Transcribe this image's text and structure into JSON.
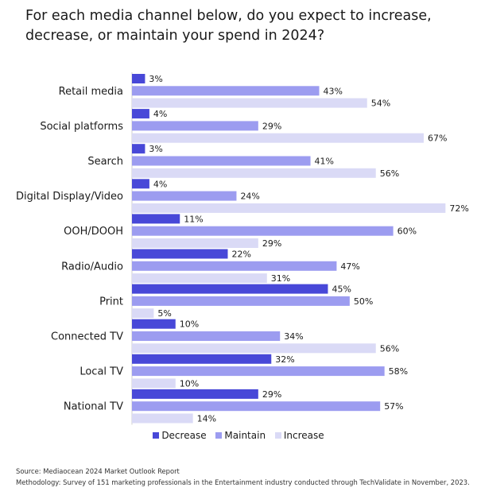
{
  "title": "For each media channel below, do you expect to increase, decrease, or maintain your spend in 2024?",
  "colors": {
    "decrease": "#4848d8",
    "maintain": "#9c9cf0",
    "increase": "#dadaf6"
  },
  "chart_data": {
    "type": "bar",
    "orientation": "horizontal",
    "title": "For each media channel below, do you expect to increase, decrease, or maintain your spend in 2024?",
    "categories": [
      "Retail media",
      "Social platforms",
      "Search",
      "Digital Display/Video",
      "OOH/DOOH",
      "Radio/Audio",
      "Print",
      "Connected TV",
      "Local TV",
      "National TV"
    ],
    "series": [
      {
        "name": "Decrease",
        "values": [
          3,
          4,
          3,
          4,
          11,
          22,
          45,
          10,
          32,
          29
        ]
      },
      {
        "name": "Maintain",
        "values": [
          43,
          29,
          41,
          24,
          60,
          47,
          50,
          34,
          58,
          57
        ]
      },
      {
        "name": "Increase",
        "values": [
          54,
          67,
          56,
          72,
          29,
          31,
          5,
          56,
          10,
          14
        ]
      }
    ],
    "value_suffix": "%",
    "xlim": [
      0,
      72
    ],
    "legend": "bottom-center",
    "grid": false
  },
  "legend": [
    "Decrease",
    "Maintain",
    "Increase"
  ],
  "footer": {
    "source": "Source: Mediaocean 2024 Market Outlook Report",
    "methodology": "Methodology: Survey of 151 marketing professionals in the Entertainment industry conducted through TechValidate in November, 2023."
  }
}
